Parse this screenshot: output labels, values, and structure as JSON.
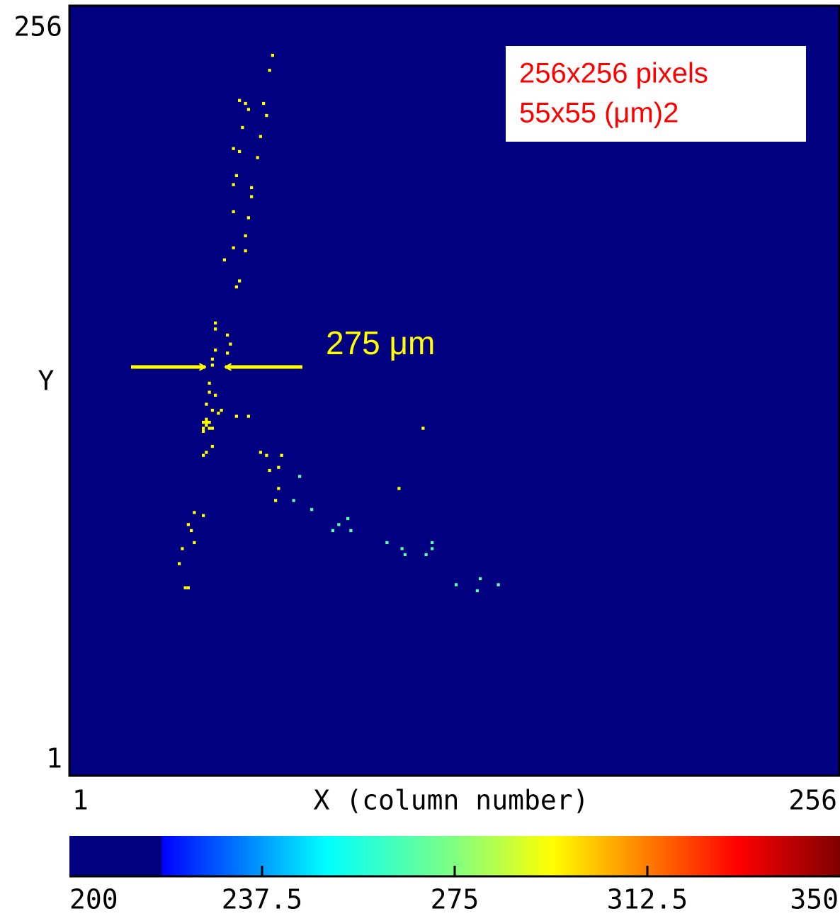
{
  "chart_data": {
    "type": "heatmap",
    "xlabel": "X (column number)",
    "ylabel": "Y",
    "xlim": [
      1,
      256
    ],
    "ylim": [
      1,
      256
    ],
    "xticks": [
      1,
      256
    ],
    "yticks": [
      1,
      256
    ],
    "annotations": [
      "256x256 pixels",
      "55x55 (μm)2",
      "275 μm"
    ],
    "background_color": "#000080",
    "clim": [
      200,
      350
    ],
    "cticks": [
      200,
      237.5,
      275,
      312.5,
      350
    ],
    "colormap": [
      {
        "value": 200,
        "color": "#000080"
      },
      {
        "value": 218,
        "color": "#000080"
      },
      {
        "value": 218,
        "color": "#0000ff"
      },
      {
        "value": 250,
        "color": "#00ffff"
      },
      {
        "value": 275,
        "color": "#80ff80"
      },
      {
        "value": 294,
        "color": "#ffff00"
      },
      {
        "value": 330,
        "color": "#ff0000"
      },
      {
        "value": 350,
        "color": "#800000"
      }
    ],
    "x": [
      68,
      67,
      57,
      59,
      60,
      65,
      66,
      58,
      64,
      55,
      57,
      63,
      56,
      55,
      61,
      61,
      55,
      60,
      59,
      55,
      59,
      52,
      57,
      56,
      49,
      49,
      53,
      54,
      49,
      53,
      48,
      48,
      47,
      47,
      49,
      46,
      48,
      50,
      51,
      56,
      60,
      46,
      48,
      45,
      48,
      46,
      45,
      64,
      66,
      71,
      70,
      67,
      118,
      110,
      70,
      69,
      42,
      45,
      40,
      41,
      42,
      38,
      37,
      39,
      40,
      45,
      46,
      47,
      46,
      47,
      45,
      77,
      75,
      81,
      88,
      90,
      93,
      94,
      106,
      111,
      112,
      121,
      121,
      119,
      129,
      136,
      137,
      143
    ],
    "y": [
      240,
      235,
      225,
      224,
      222,
      224,
      220,
      216,
      213,
      209,
      208,
      206,
      200,
      197,
      196,
      193,
      188,
      186,
      180,
      176,
      175,
      172,
      165,
      163,
      151,
      149,
      147,
      144,
      142,
      141,
      139,
      137,
      131,
      128,
      127,
      124,
      122,
      121,
      122,
      120,
      120,
      118,
      116,
      115,
      110,
      108,
      107,
      108,
      107,
      107,
      103,
      102,
      116,
      96,
      96,
      92,
      88,
      87,
      84,
      82,
      78,
      76,
      71,
      63,
      63,
      118,
      119,
      118,
      117,
      116,
      116,
      100,
      92,
      89,
      82,
      84,
      86,
      82,
      78,
      76,
      74,
      78,
      76,
      74,
      64,
      62,
      66,
      64
    ],
    "values": [
      294,
      294,
      294,
      294,
      294,
      294,
      294,
      294,
      294,
      294,
      294,
      294,
      294,
      294,
      294,
      294,
      294,
      294,
      294,
      294,
      294,
      294,
      294,
      294,
      294,
      294,
      294,
      294,
      294,
      294,
      294,
      294,
      294,
      294,
      294,
      294,
      294,
      294,
      294,
      294,
      294,
      294,
      294,
      294,
      294,
      294,
      294,
      294,
      294,
      294,
      294,
      294,
      294,
      294,
      294,
      294,
      294,
      294,
      294,
      294,
      294,
      294,
      294,
      294,
      294,
      294,
      294,
      294,
      294,
      294,
      294,
      268,
      268,
      268,
      268,
      268,
      268,
      268,
      268,
      268,
      268,
      268,
      268,
      268,
      268,
      268,
      268,
      268
    ]
  }
}
